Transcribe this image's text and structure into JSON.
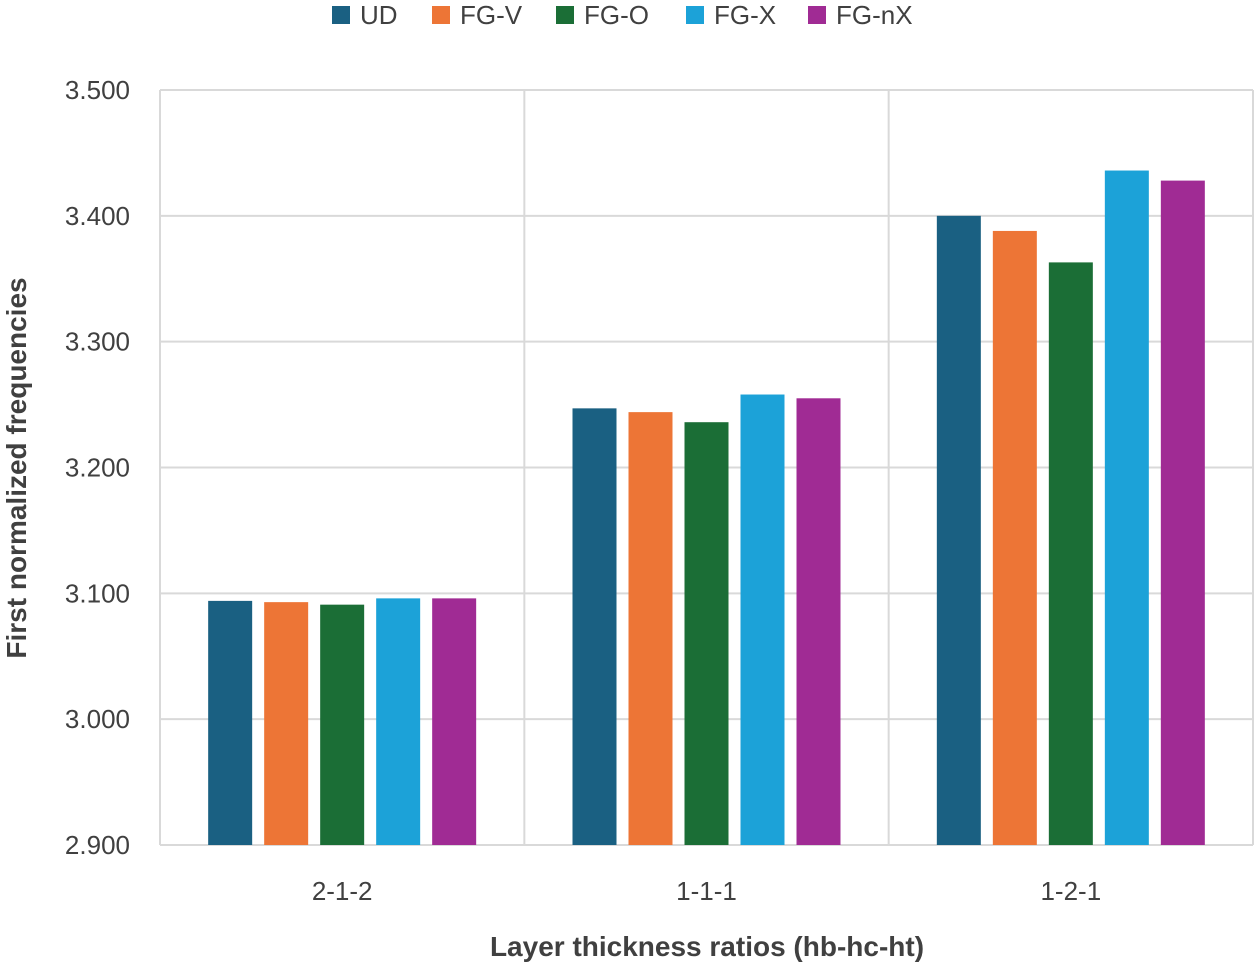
{
  "chart_data": {
    "type": "bar",
    "title": "",
    "xlabel": "Layer thickness ratios (hb-hc-ht)",
    "ylabel": "First normalized frequencies",
    "ylim": [
      2.9,
      3.5
    ],
    "yticks": [
      "2.900",
      "3.000",
      "3.100",
      "3.200",
      "3.300",
      "3.400",
      "3.500"
    ],
    "categories": [
      "2-1-2",
      "1-1-1",
      "1-2-1"
    ],
    "grid": true,
    "legend_position": "top",
    "series": [
      {
        "name": "UD",
        "color": "#1a6082",
        "values": [
          3.094,
          3.247,
          3.4
        ]
      },
      {
        "name": "FG-V",
        "color": "#ed7536",
        "values": [
          3.093,
          3.244,
          3.388
        ]
      },
      {
        "name": "FG-O",
        "color": "#1b6e36",
        "values": [
          3.091,
          3.236,
          3.363
        ]
      },
      {
        "name": "FG-X",
        "color": "#1ca2d8",
        "values": [
          3.096,
          3.258,
          3.436
        ]
      },
      {
        "name": "FG-nX",
        "color": "#a02b94",
        "values": [
          3.096,
          3.255,
          3.428
        ]
      }
    ]
  }
}
